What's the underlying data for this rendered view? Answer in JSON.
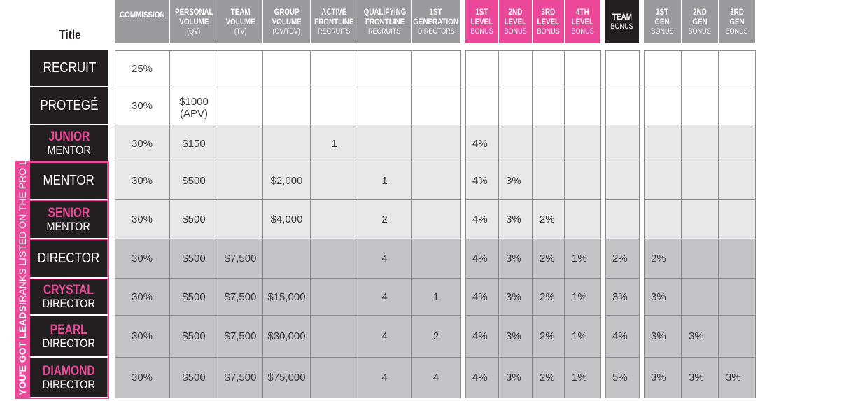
{
  "title_label": "Title",
  "headers": [
    {
      "l1": "COMMISSION",
      "l2": "",
      "style": "gray"
    },
    {
      "l1": "PERSONAL|VOLUME",
      "l2": "(QV)",
      "style": "gray"
    },
    {
      "l1": "TEAM|VOLUME",
      "l2": "(TV)",
      "style": "gray"
    },
    {
      "l1": "GROUP|VOLUME",
      "l2": "(GV/TDV)",
      "style": "gray"
    },
    {
      "l1": "ACTIVE|FRONTLINE",
      "l2": "RECRUITS",
      "style": "gray"
    },
    {
      "l1": "QUALIFYING|FRONTLINE",
      "l2": "RECRUITS",
      "style": "gray"
    },
    {
      "l1": "1ST|GENERATION",
      "l2": "DIRECTORS",
      "style": "gray"
    },
    {
      "l1": "1ST|LEVEL",
      "l2": "BONUS",
      "style": "pink"
    },
    {
      "l1": "2ND|LEVEL",
      "l2": "BONUS",
      "style": "pink"
    },
    {
      "l1": "3RD|LEVEL",
      "l2": "BONUS",
      "style": "pink"
    },
    {
      "l1": "4TH|LEVEL",
      "l2": "BONUS",
      "style": "pink"
    },
    {
      "l1": "TEAM",
      "l2": "BONUS",
      "style": "black"
    },
    {
      "l1": "1ST|GEN",
      "l2": "BONUS",
      "style": "gray"
    },
    {
      "l1": "2ND|GEN",
      "l2": "BONUS",
      "style": "gray"
    },
    {
      "l1": "3RD|GEN",
      "l2": "BONUS",
      "style": "gray"
    }
  ],
  "ranks": [
    {
      "line1": "RECRUIT",
      "line2": "",
      "pink": false,
      "cells": [
        "25%",
        "",
        "",
        "",
        "",
        "",
        "",
        "",
        "",
        "",
        "",
        "",
        "",
        "",
        ""
      ]
    },
    {
      "line1": "PROTEGÉ",
      "line2": "",
      "pink": false,
      "cells": [
        "30%",
        "$1000|(APV)",
        "",
        "",
        "",
        "",
        "",
        "",
        "",
        "",
        "",
        "",
        "",
        "",
        ""
      ]
    },
    {
      "line1": "JUNIOR",
      "line2": "MENTOR",
      "pink": true,
      "cells": [
        "30%",
        "$150",
        "",
        "",
        "1",
        "",
        "",
        "4%",
        "",
        "",
        "",
        "",
        "",
        "",
        ""
      ]
    },
    {
      "line1": "MENTOR",
      "line2": "",
      "pink": false,
      "cells": [
        "30%",
        "$500",
        "",
        "$2,000",
        "",
        "1",
        "",
        "4%",
        "3%",
        "",
        "",
        "",
        "",
        "",
        ""
      ]
    },
    {
      "line1": "SENIOR",
      "line2": "MENTOR",
      "pink": true,
      "cells": [
        "30%",
        "$500",
        "",
        "$4,000",
        "",
        "2",
        "",
        "4%",
        "3%",
        "2%",
        "",
        "",
        "",
        "",
        ""
      ]
    },
    {
      "line1": "DIRECTOR",
      "line2": "",
      "pink": false,
      "cells": [
        "30%",
        "$500",
        "$7,500",
        "",
        "",
        "4",
        "",
        "4%",
        "3%",
        "2%",
        "1%",
        "2%",
        "2%",
        "",
        ""
      ]
    },
    {
      "line1": "CRYSTAL",
      "line2": "DIRECTOR",
      "pink": true,
      "cells": [
        "30%",
        "$500",
        "$7,500",
        "$15,000",
        "",
        "4",
        "1",
        "4%",
        "3%",
        "2%",
        "1%",
        "3%",
        "3%",
        "",
        ""
      ]
    },
    {
      "line1": "PEARL",
      "line2": "DIRECTOR",
      "pink": true,
      "cells": [
        "30%",
        "$500",
        "$7,500",
        "$30,000",
        "",
        "4",
        "2",
        "4%",
        "3%",
        "2%",
        "1%",
        "4%",
        "3%",
        "3%",
        ""
      ]
    },
    {
      "line1": "DIAMOND",
      "line2": "DIRECTOR",
      "pink": true,
      "cells": [
        "30%",
        "$500",
        "$7,500",
        "$75,000",
        "",
        "4",
        "4",
        "4%",
        "3%",
        "2%",
        "1%",
        "5%",
        "3%",
        "3%",
        "3%"
      ]
    }
  ],
  "side_banner": {
    "bold": "YOU'E GOT LEADS!",
    "normal": "RANKS LISTED ON THE PRO LOCATOR"
  },
  "colors": {
    "pink": "#ec4899",
    "dark": "#231f20",
    "header_gray": "#9b9b9d",
    "tier_white": "#ffffff",
    "tier_light": "#e8e8e8",
    "tier_dark": "#c4c4c6"
  }
}
